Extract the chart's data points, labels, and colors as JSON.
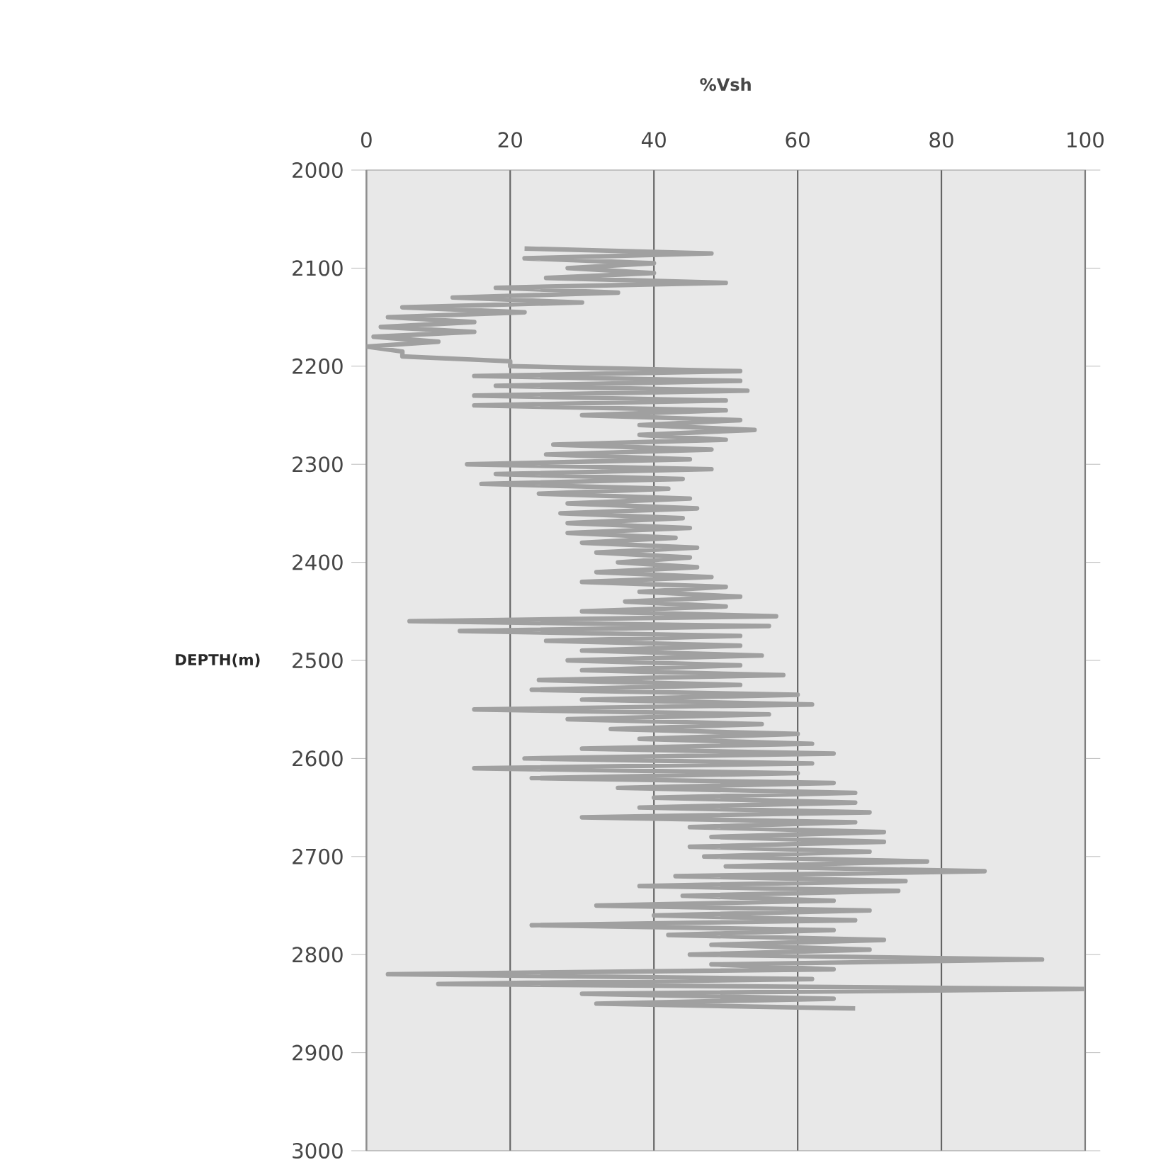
{
  "chart_data": {
    "type": "line",
    "xlabel": "%Vsh",
    "ylabel": "DEPTH(m)",
    "xlim": [
      0,
      100
    ],
    "ylim": [
      3000,
      2000
    ],
    "xticks": [
      0,
      20,
      40,
      60,
      80,
      100
    ],
    "yticks": [
      2000,
      2100,
      2200,
      2300,
      2400,
      2500,
      2600,
      2700,
      2800,
      2900,
      3000
    ],
    "grid": "x",
    "line_style": "solid",
    "series": [
      {
        "color": "#a0a0a0",
        "x": [
          22,
          48,
          22,
          40,
          28,
          40,
          25,
          50,
          18,
          35,
          12,
          30,
          5,
          22,
          3,
          15,
          2,
          15,
          1,
          10,
          0,
          5,
          5,
          20,
          20,
          52,
          15,
          52,
          18,
          53,
          15,
          50,
          15,
          50,
          30,
          52,
          38,
          54,
          38,
          50,
          26,
          48,
          25,
          45,
          14,
          48,
          18,
          44,
          16,
          42,
          24,
          45,
          28,
          46,
          27,
          44,
          28,
          45,
          28,
          43,
          30,
          46,
          32,
          45,
          35,
          46,
          32,
          48,
          30,
          50,
          38,
          52,
          36,
          50,
          30,
          57,
          6,
          56,
          13,
          52,
          25,
          52,
          30,
          55,
          28,
          52,
          30,
          58,
          24,
          52,
          23,
          60,
          30,
          62,
          15,
          56,
          28,
          55,
          34,
          60,
          38,
          62,
          30,
          65,
          22,
          62,
          15,
          60,
          23,
          65,
          35,
          68,
          40,
          68,
          38,
          70,
          30,
          68,
          45,
          72,
          48,
          72,
          45,
          70,
          47,
          78,
          50,
          86,
          43,
          75,
          38,
          74,
          44,
          65,
          32,
          70,
          40,
          68,
          23,
          65,
          42,
          72,
          48,
          70,
          45,
          94,
          48,
          65,
          3,
          62,
          10,
          100,
          30,
          65,
          32,
          68
        ],
        "values": [
          2080,
          2085,
          2090,
          2095,
          2100,
          2105,
          2110,
          2115,
          2120,
          2125,
          2130,
          2135,
          2140,
          2145,
          2150,
          2155,
          2160,
          2165,
          2170,
          2175,
          2180,
          2185,
          2190,
          2195,
          2200,
          2205,
          2210,
          2215,
          2220,
          2225,
          2230,
          2235,
          2240,
          2245,
          2250,
          2255,
          2260,
          2265,
          2270,
          2275,
          2280,
          2285,
          2290,
          2295,
          2300,
          2305,
          2310,
          2315,
          2320,
          2325,
          2330,
          2335,
          2340,
          2345,
          2350,
          2355,
          2360,
          2365,
          2370,
          2375,
          2380,
          2385,
          2390,
          2395,
          2400,
          2405,
          2410,
          2415,
          2420,
          2425,
          2430,
          2435,
          2440,
          2445,
          2450,
          2455,
          2460,
          2465,
          2470,
          2475,
          2480,
          2485,
          2490,
          2495,
          2500,
          2505,
          2510,
          2515,
          2520,
          2525,
          2530,
          2535,
          2540,
          2545,
          2550,
          2555,
          2560,
          2565,
          2570,
          2575,
          2580,
          2585,
          2590,
          2595,
          2600,
          2605,
          2610,
          2615,
          2620,
          2625,
          2630,
          2635,
          2640,
          2645,
          2650,
          2655,
          2660,
          2665,
          2670,
          2675,
          2680,
          2685,
          2690,
          2695,
          2700,
          2705,
          2710,
          2715,
          2720,
          2725,
          2730,
          2735,
          2740,
          2745,
          2750,
          2755,
          2760,
          2765,
          2770,
          2775,
          2780,
          2785,
          2790,
          2795,
          2800,
          2805,
          2810,
          2815,
          2820,
          2825,
          2830,
          2835,
          2840,
          2845,
          2850,
          2855
        ]
      }
    ]
  }
}
